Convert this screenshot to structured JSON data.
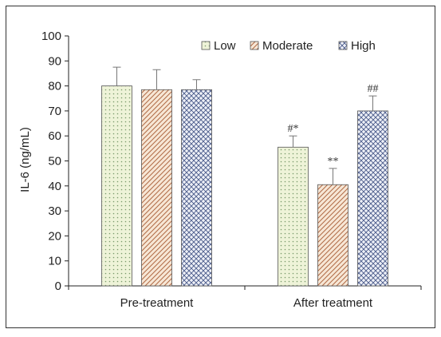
{
  "chart_data": {
    "type": "bar",
    "categories": [
      "Pre-treatment",
      "After treatment"
    ],
    "ylabel": "IL-6 (ng/mL)",
    "ylim": [
      0,
      100
    ],
    "yticks": [
      0,
      10,
      20,
      30,
      40,
      50,
      60,
      70,
      80,
      90,
      100
    ],
    "legend_position": "top-right",
    "grid": false,
    "series": [
      {
        "name": "Low",
        "values": [
          80,
          55.5
        ],
        "errors": [
          7.5,
          4.5
        ],
        "annotations": [
          "",
          "#*"
        ],
        "fill": "#eef3d8",
        "pattern": "dots"
      },
      {
        "name": "Moderate",
        "values": [
          78.5,
          40.5
        ],
        "errors": [
          8,
          6.5
        ],
        "annotations": [
          "",
          "**"
        ],
        "fill": "#f7e7d6",
        "pattern": "diagonal"
      },
      {
        "name": "High",
        "values": [
          78.5,
          70
        ],
        "errors": [
          4,
          6
        ],
        "annotations": [
          "",
          "##"
        ],
        "fill": "#eef0f7",
        "pattern": "crosshatch"
      }
    ]
  }
}
